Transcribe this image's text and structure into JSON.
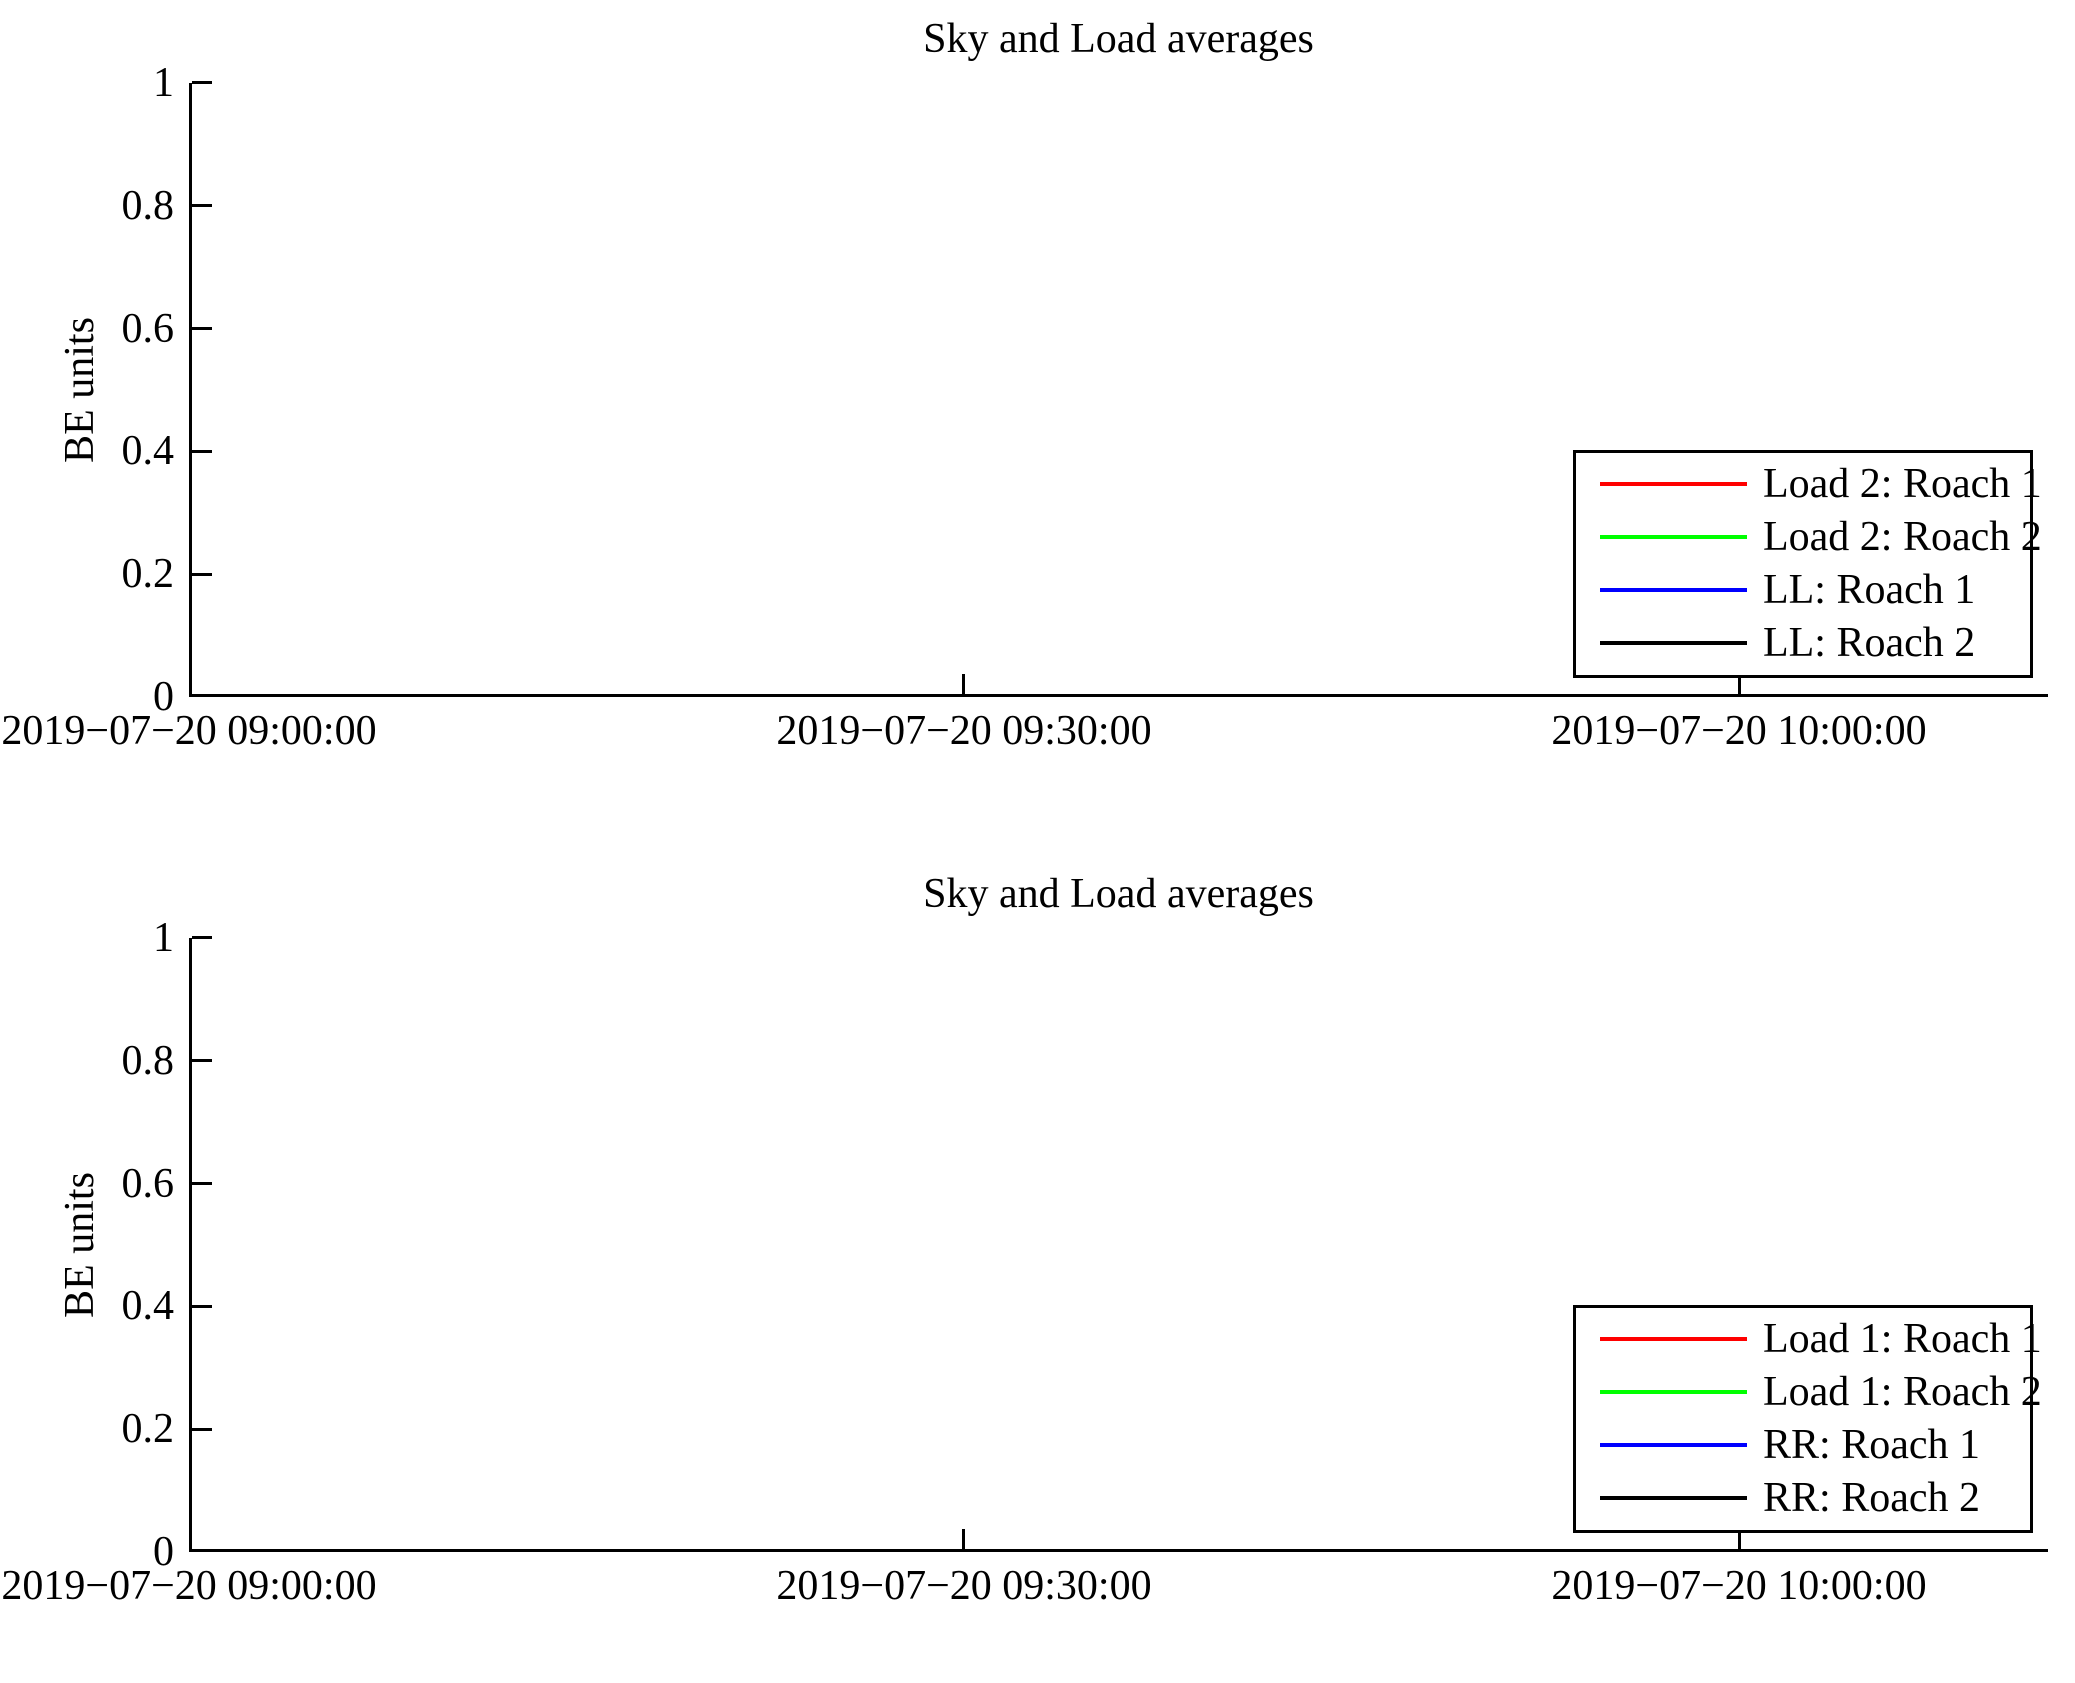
{
  "chart_data": [
    {
      "type": "line",
      "title": "Sky and Load averages",
      "xlabel": "",
      "ylabel": "BE units",
      "ylim": [
        0,
        1
      ],
      "y_ticks": [
        0,
        0.2,
        0.4,
        0.6,
        0.8,
        1
      ],
      "y_tick_labels": [
        "1",
        "0.8",
        "0.6",
        "0.4",
        "0.2",
        "0"
      ],
      "x_tick_labels": [
        "2019−07−20 09:00:00",
        "2019−07−20 09:30:00",
        "2019−07−20 10:00:00"
      ],
      "grid": false,
      "legend_position": "inside-right",
      "series": [
        {
          "name": "Load 2: Roach 1",
          "color": "#ff0000",
          "values": []
        },
        {
          "name": "Load 2: Roach 2",
          "color": "#00ff00",
          "values": []
        },
        {
          "name": "LL: Roach 1",
          "color": "#0000ff",
          "values": []
        },
        {
          "name": "LL: Roach 2",
          "color": "#000000",
          "values": []
        }
      ],
      "note": "plot area contains no visible data points; only axes and legend are drawn"
    },
    {
      "type": "line",
      "title": "Sky and Load averages",
      "xlabel": "",
      "ylabel": "BE units",
      "ylim": [
        0,
        1
      ],
      "y_ticks": [
        0,
        0.2,
        0.4,
        0.6,
        0.8,
        1
      ],
      "y_tick_labels": [
        "1",
        "0.8",
        "0.6",
        "0.4",
        "0.2",
        "0"
      ],
      "x_tick_labels": [
        "2019−07−20 09:00:00",
        "2019−07−20 09:30:00",
        "2019−07−20 10:00:00"
      ],
      "grid": false,
      "legend_position": "inside-right",
      "series": [
        {
          "name": "Load 1: Roach 1",
          "color": "#ff0000",
          "values": []
        },
        {
          "name": "Load 1: Roach 2",
          "color": "#00ff00",
          "values": []
        },
        {
          "name": "RR: Roach 1",
          "color": "#0000ff",
          "values": []
        },
        {
          "name": "RR: Roach 2",
          "color": "#000000",
          "values": []
        }
      ],
      "note": "plot area contains no visible data points; only axes and legend are drawn"
    }
  ]
}
